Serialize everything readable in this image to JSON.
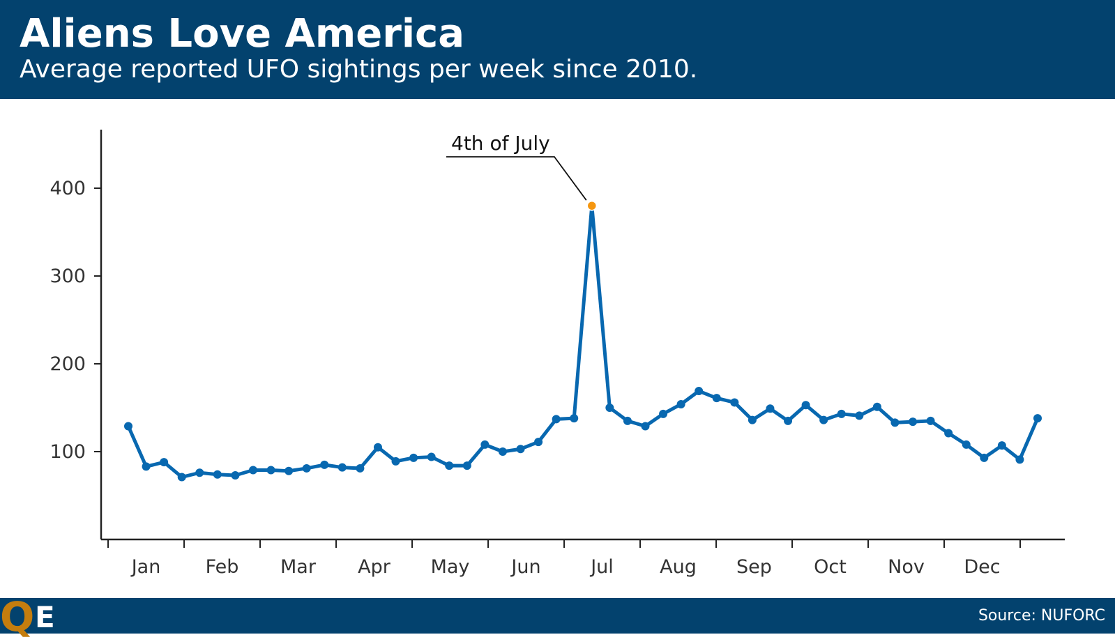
{
  "header": {
    "title": "Aliens Love America",
    "subtitle": "Average reported UFO sightings per week since 2010."
  },
  "footer": {
    "logo_q": "Q",
    "logo_e": "E",
    "source": "Source: NUFORC"
  },
  "colors": {
    "brand": "#03426e",
    "line": "#0868b0",
    "highlight": "#f5960f",
    "logo_accent": "#c47d0e"
  },
  "chart_data": {
    "type": "line",
    "title": "Aliens Love America",
    "subtitle": "Average reported UFO sightings per week since 2010.",
    "xlabel": "",
    "ylabel": "",
    "ylim": [
      0,
      460
    ],
    "yticks": [
      100,
      200,
      300,
      400
    ],
    "grid": false,
    "months": [
      "Jan",
      "Feb",
      "Mar",
      "Apr",
      "May",
      "Jun",
      "Jul",
      "Aug",
      "Sep",
      "Oct",
      "Nov",
      "Dec"
    ],
    "series": [
      {
        "values": [
          129,
          83,
          88,
          71,
          76,
          74,
          73,
          79,
          79,
          78,
          81,
          85,
          82,
          81,
          105,
          89,
          93,
          94,
          84,
          84,
          108,
          100,
          103,
          111,
          137,
          138,
          380,
          150,
          135,
          129,
          143,
          154,
          169,
          161,
          156,
          136,
          149,
          135,
          153,
          136,
          143,
          141,
          151,
          133,
          134,
          135,
          121,
          108,
          93,
          107,
          91,
          138
        ]
      }
    ],
    "annotations": [
      {
        "label": "4th of July",
        "index": 26
      }
    ]
  }
}
